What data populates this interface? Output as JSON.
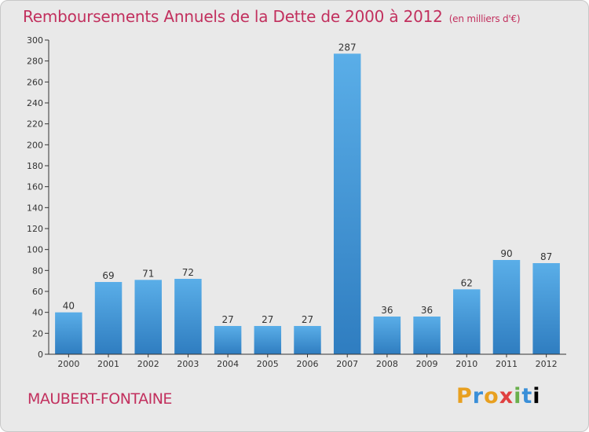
{
  "header": {
    "title": "Remboursements Annuels de la Dette de 2000 à 2012",
    "unit": "(en milliers d'€)"
  },
  "footer": {
    "commune": "MAUBERT-FONTAINE",
    "logo_letters": [
      "P",
      "r",
      "o",
      "x",
      "i",
      "t",
      "i"
    ]
  },
  "colors": {
    "title": "#c2305e",
    "bar_top": "#5aaee8",
    "bar_bottom": "#2f7dc0",
    "background": "#e9e9e9"
  },
  "chart_data": {
    "type": "bar",
    "categories": [
      "2000",
      "2001",
      "2002",
      "2003",
      "2004",
      "2005",
      "2006",
      "2007",
      "2008",
      "2009",
      "2010",
      "2011",
      "2012"
    ],
    "values": [
      40,
      69,
      71,
      72,
      27,
      27,
      27,
      287,
      36,
      36,
      62,
      90,
      87
    ],
    "title": "Remboursements Annuels de la Dette de 2000 à 2012",
    "ylim": [
      0,
      300
    ],
    "yticks": [
      0,
      20,
      40,
      60,
      80,
      100,
      120,
      140,
      160,
      180,
      200,
      220,
      240,
      260,
      280,
      300
    ],
    "grid": false,
    "legend": "none"
  }
}
